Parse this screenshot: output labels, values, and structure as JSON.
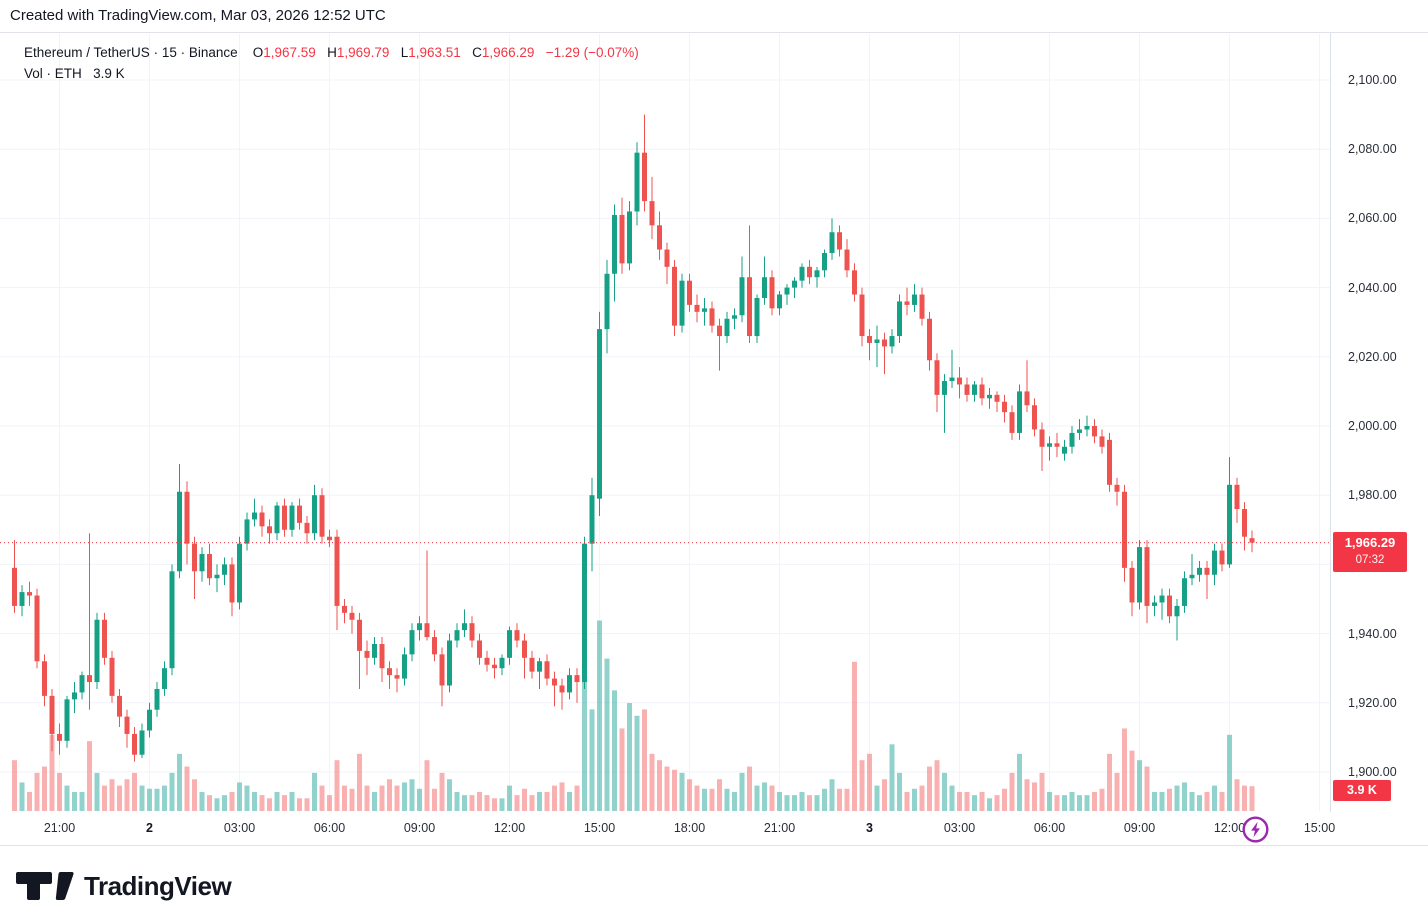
{
  "attribution": "Created with TradingView.com, Mar 03, 2026 12:52 UTC",
  "legend": {
    "symbol": "Ethereum / TetherUS",
    "separator": "·",
    "interval": "15",
    "exchange": "Binance",
    "o_label": "O",
    "o_value": "1,967.59",
    "h_label": "H",
    "h_value": "1,969.79",
    "l_label": "L",
    "l_value": "1,963.51",
    "c_label": "C",
    "c_value": "1,966.29",
    "change": "−1.29 (−0.07%)",
    "vol_label": "Vol · ETH",
    "vol_value": "3.9 K"
  },
  "price_axis": {
    "labels": [
      {
        "price": 2100,
        "text": "2,100.00"
      },
      {
        "price": 2080,
        "text": "2,080.00"
      },
      {
        "price": 2060,
        "text": "2,060.00"
      },
      {
        "price": 2040,
        "text": "2,040.00"
      },
      {
        "price": 2020,
        "text": "2,020.00"
      },
      {
        "price": 2000,
        "text": "2,000.00"
      },
      {
        "price": 1980,
        "text": "1,980.00"
      },
      {
        "price": 1940,
        "text": "1,940.00"
      },
      {
        "price": 1920,
        "text": "1,920.00"
      },
      {
        "price": 1900,
        "text": "1,900.00"
      }
    ],
    "badge": {
      "price": "1,966.29",
      "countdown": "07:32"
    },
    "vol_badge": "3.9 K"
  },
  "time_axis": {
    "ticks": [
      {
        "i": 6,
        "label": "21:00",
        "bold": false
      },
      {
        "i": 18,
        "label": "2",
        "bold": true
      },
      {
        "i": 30,
        "label": "03:00",
        "bold": false
      },
      {
        "i": 42,
        "label": "06:00",
        "bold": false
      },
      {
        "i": 54,
        "label": "09:00",
        "bold": false
      },
      {
        "i": 66,
        "label": "12:00",
        "bold": false
      },
      {
        "i": 78,
        "label": "15:00",
        "bold": false
      },
      {
        "i": 90,
        "label": "18:00",
        "bold": false
      },
      {
        "i": 102,
        "label": "21:00",
        "bold": false
      },
      {
        "i": 114,
        "label": "3",
        "bold": true
      },
      {
        "i": 126,
        "label": "03:00",
        "bold": false
      },
      {
        "i": 138,
        "label": "06:00",
        "bold": false
      },
      {
        "i": 150,
        "label": "09:00",
        "bold": false
      },
      {
        "i": 162,
        "label": "12:00",
        "bold": false
      },
      {
        "i": 174,
        "label": "15:00",
        "bold": false
      }
    ]
  },
  "logo": {
    "text": "TradingView"
  },
  "chart_data": {
    "type": "candlestick",
    "title": "Ethereum / TetherUS · 15 · Binance",
    "symbol": "ETHUSDT",
    "exchange": "Binance",
    "interval_min": 15,
    "start_time": "2026-03-01 19:30 UTC",
    "last_bar": {
      "open": 1967.59,
      "high": 1969.79,
      "low": 1963.51,
      "close": 1966.29,
      "change": -1.29,
      "change_pct": -0.07
    },
    "current_volume_k": 3.9,
    "price_line": 1966.29,
    "countdown": "07:32",
    "y_axis": {
      "min": 1888,
      "max": 2113,
      "grid_step": 20,
      "grid": true
    },
    "colors": {
      "up": "#16a086",
      "down": "#ef5350",
      "price_line": "#f23645",
      "badge": "#f23645",
      "vol_up": "rgba(38,166,154,0.5)",
      "vol_down": "rgba(239,83,80,0.45)",
      "grid": "#f0f3fa",
      "axis_text": "#2a2e39",
      "accent_purple": "#9c27b0"
    },
    "candles": [
      [
        1959,
        1967,
        1946,
        1948,
        8
      ],
      [
        1948,
        1954,
        1945,
        1952,
        4.5
      ],
      [
        1952,
        1955,
        1948,
        1951,
        3
      ],
      [
        1951,
        1953,
        1930,
        1932,
        6
      ],
      [
        1932,
        1934,
        1919,
        1922,
        7
      ],
      [
        1922,
        1924,
        1906,
        1911,
        12
      ],
      [
        1911,
        1914,
        1905,
        1909,
        6
      ],
      [
        1909,
        1922,
        1907,
        1921,
        4
      ],
      [
        1921,
        1926,
        1917,
        1923,
        3
      ],
      [
        1923,
        1929,
        1921,
        1928,
        3
      ],
      [
        1928,
        1969,
        1918,
        1926,
        11
      ],
      [
        1926,
        1946,
        1924,
        1944,
        6
      ],
      [
        1944,
        1946,
        1931,
        1933,
        4
      ],
      [
        1933,
        1935,
        1920,
        1922,
        5
      ],
      [
        1922,
        1924,
        1913,
        1916,
        4
      ],
      [
        1916,
        1918,
        1907,
        1911,
        5
      ],
      [
        1911,
        1913,
        1903,
        1905,
        6
      ],
      [
        1905,
        1914,
        1904,
        1912,
        4
      ],
      [
        1912,
        1920,
        1910,
        1918,
        3.5
      ],
      [
        1918,
        1926,
        1916,
        1924,
        3.5
      ],
      [
        1924,
        1932,
        1922,
        1930,
        4
      ],
      [
        1930,
        1960,
        1928,
        1958,
        6
      ],
      [
        1958,
        1989,
        1956,
        1981,
        9
      ],
      [
        1981,
        1984,
        1960,
        1966,
        7
      ],
      [
        1966,
        1968,
        1950,
        1958,
        5
      ],
      [
        1958,
        1965,
        1955,
        1963,
        3
      ],
      [
        1963,
        1966,
        1954,
        1956,
        2.5
      ],
      [
        1956,
        1960,
        1952,
        1957,
        2
      ],
      [
        1957,
        1962,
        1954,
        1960,
        2.5
      ],
      [
        1960,
        1962,
        1945,
        1949,
        3
      ],
      [
        1949,
        1968,
        1947,
        1966,
        4.5
      ],
      [
        1966,
        1975,
        1964,
        1973,
        4
      ],
      [
        1973,
        1979,
        1971,
        1975,
        3
      ],
      [
        1975,
        1977,
        1968,
        1971,
        2.5
      ],
      [
        1971,
        1973,
        1966,
        1969,
        2
      ],
      [
        1969,
        1978,
        1967,
        1977,
        3
      ],
      [
        1977,
        1979,
        1968,
        1970,
        2.5
      ],
      [
        1970,
        1978,
        1968,
        1977,
        3
      ],
      [
        1977,
        1979,
        1970,
        1972,
        2
      ],
      [
        1972,
        1974,
        1966,
        1969,
        2
      ],
      [
        1969,
        1983,
        1967,
        1980,
        6
      ],
      [
        1980,
        1982,
        1966,
        1968,
        4
      ],
      [
        1968,
        1970,
        1965,
        1967,
        2.5
      ],
      [
        1968,
        1970,
        1941,
        1948,
        8
      ],
      [
        1948,
        1950,
        1943,
        1946,
        4
      ],
      [
        1946,
        1948,
        1940,
        1944,
        3.5
      ],
      [
        1944,
        1946,
        1924,
        1935,
        9
      ],
      [
        1935,
        1938,
        1928,
        1933,
        4
      ],
      [
        1933,
        1939,
        1931,
        1937,
        3
      ],
      [
        1937,
        1939,
        1926,
        1930,
        4
      ],
      [
        1930,
        1932,
        1924,
        1928,
        5
      ],
      [
        1928,
        1930,
        1923,
        1927,
        4
      ],
      [
        1927,
        1936,
        1925,
        1934,
        4.5
      ],
      [
        1934,
        1943,
        1932,
        1941,
        5
      ],
      [
        1941,
        1945,
        1938,
        1943,
        3.5
      ],
      [
        1943,
        1964,
        1938,
        1939,
        8
      ],
      [
        1939,
        1941,
        1932,
        1934,
        3.5
      ],
      [
        1934,
        1936,
        1919,
        1925,
        6
      ],
      [
        1925,
        1940,
        1923,
        1938,
        5
      ],
      [
        1938,
        1943,
        1936,
        1941,
        3
      ],
      [
        1941,
        1947,
        1939,
        1943,
        2.5
      ],
      [
        1943,
        1945,
        1936,
        1938,
        2.5
      ],
      [
        1938,
        1940,
        1931,
        1933,
        3
      ],
      [
        1933,
        1935,
        1929,
        1931,
        2.5
      ],
      [
        1931,
        1933,
        1927,
        1930,
        2
      ],
      [
        1930,
        1934,
        1928,
        1933,
        2
      ],
      [
        1933,
        1942,
        1931,
        1941,
        4
      ],
      [
        1941,
        1943,
        1936,
        1938,
        2.5
      ],
      [
        1938,
        1940,
        1927,
        1933,
        3.5
      ],
      [
        1933,
        1935,
        1927,
        1929,
        2.5
      ],
      [
        1929,
        1933,
        1924,
        1932,
        3
      ],
      [
        1932,
        1934,
        1925,
        1927,
        3
      ],
      [
        1927,
        1929,
        1919,
        1925,
        4
      ],
      [
        1925,
        1927,
        1918,
        1923,
        4.5
      ],
      [
        1923,
        1930,
        1921,
        1928,
        3
      ],
      [
        1928,
        1930,
        1920,
        1926,
        4
      ],
      [
        1926,
        1968,
        1924,
        1966,
        27
      ],
      [
        1966,
        1985,
        1958,
        1980,
        16
      ],
      [
        1979,
        2033,
        1974,
        2028,
        30
      ],
      [
        2028,
        2048,
        2021,
        2044,
        24
      ],
      [
        2044,
        2064,
        2036,
        2061,
        19
      ],
      [
        2061,
        2066,
        2044,
        2047,
        13
      ],
      [
        2047,
        2065,
        2045,
        2062,
        17
      ],
      [
        2062,
        2082,
        2058,
        2079,
        15
      ],
      [
        2079,
        2090,
        2062,
        2065,
        16
      ],
      [
        2065,
        2072,
        2054,
        2058,
        9
      ],
      [
        2058,
        2062,
        2048,
        2051,
        8
      ],
      [
        2051,
        2053,
        2041,
        2046,
        7
      ],
      [
        2046,
        2048,
        2026,
        2029,
        6.5
      ],
      [
        2029,
        2044,
        2027,
        2042,
        6
      ],
      [
        2042,
        2044,
        2033,
        2035,
        5
      ],
      [
        2035,
        2038,
        2030,
        2033,
        4
      ],
      [
        2033,
        2037,
        2029,
        2034,
        3.5
      ],
      [
        2034,
        2036,
        2027,
        2029,
        3.5
      ],
      [
        2029,
        2031,
        2016,
        2026,
        5
      ],
      [
        2026,
        2033,
        2024,
        2031,
        3.5
      ],
      [
        2031,
        2034,
        2028,
        2032,
        3
      ],
      [
        2032,
        2049,
        2030,
        2043,
        6
      ],
      [
        2043,
        2058,
        2024,
        2026,
        7
      ],
      [
        2026,
        2038,
        2024,
        2037,
        4
      ],
      [
        2037,
        2049,
        2035,
        2043,
        4.5
      ],
      [
        2043,
        2045,
        2032,
        2034,
        4
      ],
      [
        2034,
        2039,
        2032,
        2038,
        3
      ],
      [
        2038,
        2041,
        2035,
        2040,
        2.5
      ],
      [
        2040,
        2043,
        2037,
        2042,
        2.5
      ],
      [
        2042,
        2047,
        2040,
        2046,
        3
      ],
      [
        2046,
        2048,
        2041,
        2043,
        2.5
      ],
      [
        2043,
        2046,
        2040,
        2045,
        2.5
      ],
      [
        2045,
        2051,
        2043,
        2050,
        3.5
      ],
      [
        2050,
        2060,
        2048,
        2056,
        5
      ],
      [
        2056,
        2058,
        2049,
        2051,
        3.5
      ],
      [
        2051,
        2054,
        2043,
        2045,
        3.5
      ],
      [
        2045,
        2047,
        2036,
        2038,
        23.5
      ],
      [
        2038,
        2040,
        2023,
        2026,
        8
      ],
      [
        2026,
        2028,
        2019,
        2024,
        9
      ],
      [
        2024,
        2029,
        2017,
        2025,
        4
      ],
      [
        2025,
        2027,
        2015,
        2023,
        5
      ],
      [
        2023,
        2028,
        2021,
        2026,
        10.5
      ],
      [
        2026,
        2038,
        2024,
        2036,
        6
      ],
      [
        2036,
        2040,
        2032,
        2035,
        3
      ],
      [
        2035,
        2041,
        2033,
        2038,
        3.5
      ],
      [
        2038,
        2040,
        2029,
        2031,
        4
      ],
      [
        2031,
        2033,
        2016,
        2019,
        7
      ],
      [
        2019,
        2021,
        2004,
        2009,
        8
      ],
      [
        2009,
        2015,
        1998,
        2013,
        6
      ],
      [
        2013,
        2022,
        2011,
        2014,
        4
      ],
      [
        2014,
        2017,
        2008,
        2012,
        3
      ],
      [
        2012,
        2014,
        2007,
        2009,
        3
      ],
      [
        2009,
        2013,
        2007,
        2012,
        2.5
      ],
      [
        2012,
        2014,
        2006,
        2008,
        3
      ],
      [
        2008,
        2011,
        2005,
        2009,
        2
      ],
      [
        2009,
        2010,
        2004,
        2007,
        2.5
      ],
      [
        2007,
        2009,
        2001,
        2004,
        3.5
      ],
      [
        2004,
        2006,
        1996,
        1998,
        6
      ],
      [
        1998,
        2012,
        1996,
        2010,
        9
      ],
      [
        2010,
        2019,
        2004,
        2006,
        5
      ],
      [
        2006,
        2008,
        1997,
        1999,
        4.5
      ],
      [
        1999,
        2001,
        1987,
        1994,
        6
      ],
      [
        1994,
        1997,
        1990,
        1995,
        3
      ],
      [
        1995,
        1998,
        1991,
        1994,
        2.5
      ],
      [
        1992,
        1996,
        1990,
        1994,
        2.5
      ],
      [
        1994,
        2000,
        1992,
        1998,
        3
      ],
      [
        1998,
        2002,
        1996,
        1999,
        2.5
      ],
      [
        1999,
        2003,
        1997,
        2000,
        2.5
      ],
      [
        2000,
        2002,
        1995,
        1997,
        3
      ],
      [
        1997,
        1999,
        1992,
        1994,
        3.5
      ],
      [
        1996,
        1998,
        1981,
        1983,
        9
      ],
      [
        1983,
        1985,
        1977,
        1981,
        6
      ],
      [
        1981,
        1983,
        1955,
        1959,
        13
      ],
      [
        1959,
        1961,
        1945,
        1949,
        9.5
      ],
      [
        1949,
        1967,
        1947,
        1965,
        8
      ],
      [
        1965,
        1967,
        1943,
        1948,
        7
      ],
      [
        1948,
        1951,
        1945,
        1949,
        3
      ],
      [
        1949,
        1953,
        1944,
        1951,
        3
      ],
      [
        1951,
        1953,
        1943,
        1945,
        3.5
      ],
      [
        1945,
        1950,
        1938,
        1948,
        4
      ],
      [
        1948,
        1958,
        1946,
        1956,
        4.5
      ],
      [
        1956,
        1963,
        1954,
        1957,
        3
      ],
      [
        1957,
        1961,
        1955,
        1959,
        2.5
      ],
      [
        1959,
        1961,
        1950,
        1957,
        3
      ],
      [
        1957,
        1966,
        1954,
        1964,
        4
      ],
      [
        1964,
        1966,
        1958,
        1960,
        3
      ],
      [
        1960,
        1991,
        1959,
        1983,
        12
      ],
      [
        1983,
        1985,
        1972,
        1976,
        5
      ],
      [
        1976,
        1978,
        1964,
        1968,
        4
      ],
      [
        1967.59,
        1969.79,
        1963.51,
        1966.29,
        3.9
      ]
    ]
  }
}
